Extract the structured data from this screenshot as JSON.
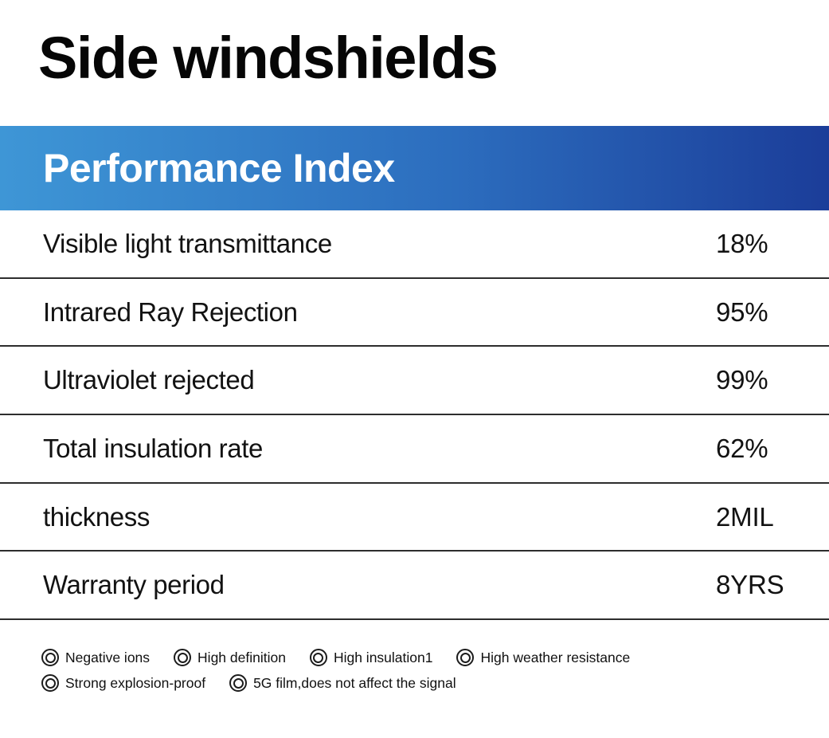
{
  "page": {
    "title": "Side windshields"
  },
  "header": {
    "title": "Performance Index",
    "gradient_start": "#3E96D6",
    "gradient_end": "#1B3D99",
    "text_color": "#ffffff"
  },
  "table": {
    "divider_color": "#2d2d2d",
    "rows": [
      {
        "label": "Visible light transmittance",
        "value": "18%"
      },
      {
        "label": "Intrared Ray Rejection",
        "value": "95%"
      },
      {
        "label": "Ultraviolet rejected",
        "value": "99%"
      },
      {
        "label": "Total insulation rate",
        "value": "62%"
      },
      {
        "label": "thickness",
        "value": "2MIL"
      },
      {
        "label": "Warranty period",
        "value": "8YRS"
      }
    ]
  },
  "features": {
    "icon": "double-circle-icon",
    "items": [
      {
        "label": "Negative ions"
      },
      {
        "label": "High definition"
      },
      {
        "label": "High insulation1"
      },
      {
        "label": "High weather resistance"
      },
      {
        "label": "Strong explosion-proof"
      },
      {
        "label": "5G film,does not affect the signal"
      }
    ]
  }
}
